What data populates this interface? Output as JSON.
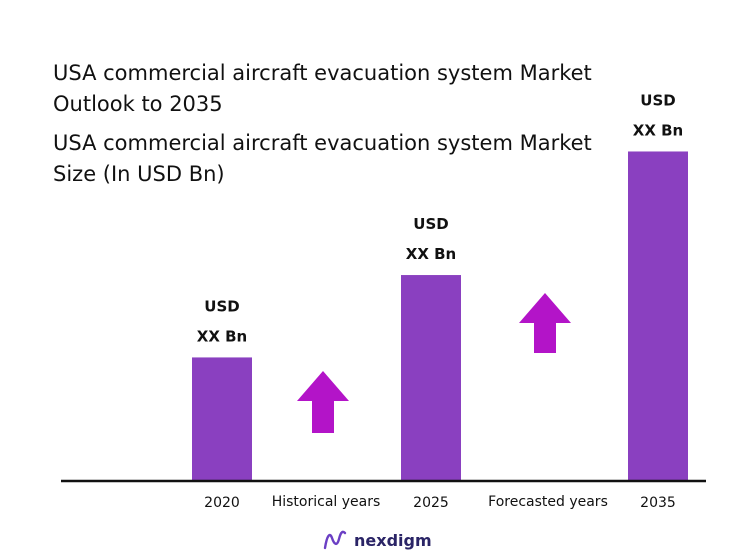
{
  "title": "USA commercial aircraft evacuation system Market Outlook to 2035",
  "subtitle": "USA commercial aircraft evacuation system Market Size (In USD Bn)",
  "brand": "nexdigm",
  "colors": {
    "bar": "#8a40c0",
    "arrow": "#b314c8",
    "axis": "#111111"
  },
  "chart_data": {
    "type": "bar",
    "categories": [
      "2020",
      "2025",
      "2035"
    ],
    "values": [
      3,
      5,
      8
    ],
    "value_labels": [
      [
        "USD",
        "XX Bn"
      ],
      [
        "USD",
        "XX Bn"
      ],
      [
        "USD",
        "XX Bn"
      ]
    ],
    "period_labels": [
      "Historical years",
      "Forecasted years"
    ],
    "ylim": [
      0,
      8.4
    ],
    "grid": false,
    "legend": "none"
  }
}
